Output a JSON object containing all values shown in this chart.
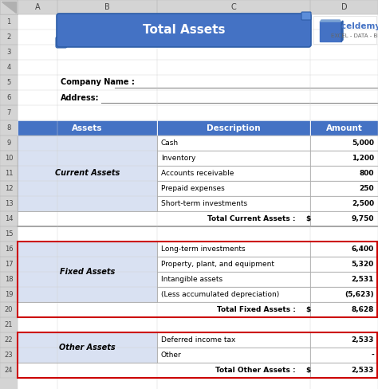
{
  "title": "Total Assets",
  "company_label": "Company Name :",
  "address_label": "Address:",
  "header_cols": [
    "Assets",
    "Description",
    "Amount"
  ],
  "header_bg": "#4472C4",
  "header_fg": "#FFFFFF",
  "current_assets_label": "Current Assets",
  "current_assets_bg": "#D9E1F2",
  "current_assets_items": [
    [
      "Cash",
      "5,000"
    ],
    [
      "Inventory",
      "1,200"
    ],
    [
      "Accounts receivable",
      "800"
    ],
    [
      "Prepaid expenses",
      "250"
    ],
    [
      "Short-term investments",
      "2,500"
    ]
  ],
  "current_total_label": "Total Current Assets :",
  "current_total_symbol": "$",
  "current_total_value": "9,750",
  "fixed_assets_label": "Fixed Assets",
  "fixed_assets_bg": "#D9E1F2",
  "fixed_assets_items": [
    [
      "Long-term investments",
      "6,400"
    ],
    [
      "Property, plant, and equipment",
      "5,320"
    ],
    [
      "Intangible assets",
      "2,531"
    ],
    [
      "(Less accumulated depreciation)",
      "(5,623)"
    ]
  ],
  "fixed_total_label": "Total Fixed Assets :",
  "fixed_total_symbol": "$",
  "fixed_total_value": "8,628",
  "other_assets_label": "Other Assets",
  "other_assets_bg": "#D9E1F2",
  "other_assets_items": [
    [
      "Deferred income tax",
      "2,533"
    ],
    [
      "Other",
      "-"
    ]
  ],
  "other_total_label": "Total Other Assets :",
  "other_total_symbol": "$",
  "other_total_value": "2,533",
  "title_bg": "#4472C4",
  "title_fg": "#FFFFFF",
  "red_border_color": "#CC0000",
  "row_bg": "#FFFFFF",
  "grid_line_color": "#AAAAAA",
  "total_row_bg": "#FFFFFF",
  "bg_color": "#FFFFFF",
  "excel_header_bg": "#D4D4D4",
  "excel_header_fg": "#444444"
}
